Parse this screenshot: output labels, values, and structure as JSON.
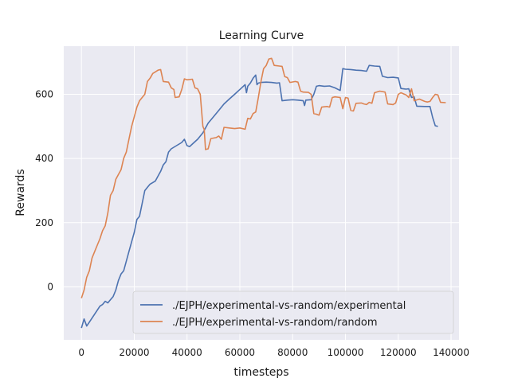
{
  "chart_data": {
    "type": "line",
    "title": "Learning Curve",
    "xlabel": "timesteps",
    "ylabel": "Rewards",
    "xlim": [
      -6700,
      143000
    ],
    "ylim": [
      -165,
      750
    ],
    "xticks": [
      0,
      20000,
      40000,
      60000,
      80000,
      100000,
      120000,
      140000
    ],
    "yticks": [
      0,
      200,
      400,
      600
    ],
    "grid": true,
    "legend_position": "lower-right",
    "series": [
      {
        "name": "./EJPH/experimental-vs-random/experimental",
        "color": "#4c72b0",
        "points": [
          [
            0,
            -128
          ],
          [
            1000,
            -100
          ],
          [
            2000,
            -122
          ],
          [
            3000,
            -110
          ],
          [
            5000,
            -85
          ],
          [
            7000,
            -60
          ],
          [
            8000,
            -55
          ],
          [
            9000,
            -45
          ],
          [
            10000,
            -50
          ],
          [
            11000,
            -40
          ],
          [
            12000,
            -30
          ],
          [
            13000,
            -10
          ],
          [
            14000,
            20
          ],
          [
            15000,
            40
          ],
          [
            16000,
            50
          ],
          [
            18000,
            110
          ],
          [
            20000,
            170
          ],
          [
            21000,
            210
          ],
          [
            22000,
            220
          ],
          [
            23000,
            260
          ],
          [
            24000,
            300
          ],
          [
            25000,
            310
          ],
          [
            26000,
            320
          ],
          [
            27000,
            325
          ],
          [
            28000,
            330
          ],
          [
            29000,
            345
          ],
          [
            30000,
            360
          ],
          [
            31000,
            380
          ],
          [
            32000,
            390
          ],
          [
            33000,
            420
          ],
          [
            34000,
            430
          ],
          [
            36000,
            440
          ],
          [
            38000,
            450
          ],
          [
            39000,
            460
          ],
          [
            40000,
            440
          ],
          [
            41000,
            437
          ],
          [
            42000,
            445
          ],
          [
            44000,
            460
          ],
          [
            46000,
            480
          ],
          [
            48000,
            510
          ],
          [
            50000,
            530
          ],
          [
            52000,
            550
          ],
          [
            54000,
            570
          ],
          [
            56000,
            585
          ],
          [
            58000,
            600
          ],
          [
            60000,
            615
          ],
          [
            62000,
            630
          ],
          [
            62500,
            605
          ],
          [
            63000,
            625
          ],
          [
            64000,
            635
          ],
          [
            65000,
            650
          ],
          [
            66000,
            660
          ],
          [
            66500,
            630
          ],
          [
            67000,
            635
          ],
          [
            68000,
            637
          ],
          [
            70000,
            638
          ],
          [
            72000,
            637
          ],
          [
            74000,
            635
          ],
          [
            75000,
            636
          ],
          [
            76000,
            580
          ],
          [
            78000,
            582
          ],
          [
            80000,
            583
          ],
          [
            82000,
            582
          ],
          [
            84000,
            580
          ],
          [
            84500,
            565
          ],
          [
            85000,
            582
          ],
          [
            87000,
            583
          ],
          [
            88000,
            600
          ],
          [
            89000,
            625
          ],
          [
            90000,
            627
          ],
          [
            92000,
            625
          ],
          [
            94000,
            626
          ],
          [
            96000,
            620
          ],
          [
            98000,
            612
          ],
          [
            99000,
            680
          ],
          [
            100000,
            678
          ],
          [
            102000,
            677
          ],
          [
            104000,
            675
          ],
          [
            106000,
            674
          ],
          [
            108000,
            672
          ],
          [
            109000,
            690
          ],
          [
            111000,
            688
          ],
          [
            113000,
            687
          ],
          [
            114000,
            656
          ],
          [
            116000,
            652
          ],
          [
            118000,
            653
          ],
          [
            120000,
            651
          ],
          [
            121000,
            618
          ],
          [
            123000,
            616
          ],
          [
            124000,
            617
          ],
          [
            125000,
            590
          ],
          [
            126000,
            592
          ],
          [
            127000,
            563
          ],
          [
            130000,
            562
          ],
          [
            132000,
            562
          ],
          [
            133000,
            528
          ],
          [
            134000,
            502
          ],
          [
            135000,
            500
          ]
        ]
      },
      {
        "name": "./EJPH/experimental-vs-random/random",
        "color": "#dd8452",
        "points": [
          [
            0,
            -35
          ],
          [
            1000,
            -10
          ],
          [
            2000,
            30
          ],
          [
            3000,
            50
          ],
          [
            4000,
            90
          ],
          [
            5000,
            110
          ],
          [
            6000,
            130
          ],
          [
            7000,
            150
          ],
          [
            8000,
            175
          ],
          [
            9000,
            190
          ],
          [
            10000,
            230
          ],
          [
            11000,
            285
          ],
          [
            12000,
            300
          ],
          [
            13000,
            335
          ],
          [
            14000,
            350
          ],
          [
            15000,
            365
          ],
          [
            16000,
            400
          ],
          [
            17000,
            420
          ],
          [
            18000,
            460
          ],
          [
            19000,
            500
          ],
          [
            20000,
            530
          ],
          [
            21000,
            560
          ],
          [
            22000,
            580
          ],
          [
            23000,
            590
          ],
          [
            24000,
            600
          ],
          [
            25000,
            640
          ],
          [
            26000,
            650
          ],
          [
            27000,
            665
          ],
          [
            28000,
            670
          ],
          [
            29000,
            675
          ],
          [
            30000,
            677
          ],
          [
            31000,
            640
          ],
          [
            33000,
            638
          ],
          [
            34000,
            620
          ],
          [
            35000,
            615
          ],
          [
            35500,
            590
          ],
          [
            37000,
            592
          ],
          [
            38000,
            615
          ],
          [
            39000,
            648
          ],
          [
            40000,
            645
          ],
          [
            42000,
            647
          ],
          [
            43000,
            620
          ],
          [
            44000,
            617
          ],
          [
            45000,
            600
          ],
          [
            46000,
            500
          ],
          [
            46500,
            490
          ],
          [
            47000,
            428
          ],
          [
            48000,
            430
          ],
          [
            49000,
            462
          ],
          [
            51000,
            465
          ],
          [
            52000,
            470
          ],
          [
            53000,
            460
          ],
          [
            54000,
            497
          ],
          [
            56000,
            495
          ],
          [
            58000,
            493
          ],
          [
            60000,
            495
          ],
          [
            62000,
            491
          ],
          [
            63000,
            525
          ],
          [
            64000,
            523
          ],
          [
            65000,
            540
          ],
          [
            66000,
            545
          ],
          [
            67000,
            590
          ],
          [
            68000,
            640
          ],
          [
            69000,
            680
          ],
          [
            70000,
            690
          ],
          [
            71000,
            710
          ],
          [
            72000,
            712
          ],
          [
            73000,
            690
          ],
          [
            75000,
            688
          ],
          [
            76000,
            687
          ],
          [
            77000,
            655
          ],
          [
            78000,
            652
          ],
          [
            79000,
            637
          ],
          [
            81000,
            640
          ],
          [
            82000,
            638
          ],
          [
            83000,
            610
          ],
          [
            84000,
            607
          ],
          [
            86000,
            606
          ],
          [
            87000,
            600
          ],
          [
            88000,
            540
          ],
          [
            89000,
            538
          ],
          [
            90000,
            535
          ],
          [
            91000,
            560
          ],
          [
            93000,
            562
          ],
          [
            94000,
            560
          ],
          [
            95000,
            590
          ],
          [
            96000,
            592
          ],
          [
            98000,
            590
          ],
          [
            99000,
            555
          ],
          [
            100000,
            590
          ],
          [
            101000,
            588
          ],
          [
            102000,
            550
          ],
          [
            103000,
            548
          ],
          [
            104000,
            572
          ],
          [
            106000,
            573
          ],
          [
            107000,
            570
          ],
          [
            108000,
            568
          ],
          [
            109000,
            575
          ],
          [
            110000,
            572
          ],
          [
            111000,
            605
          ],
          [
            113000,
            610
          ],
          [
            115000,
            607
          ],
          [
            116000,
            570
          ],
          [
            118000,
            568
          ],
          [
            119000,
            573
          ],
          [
            120000,
            600
          ],
          [
            121000,
            605
          ],
          [
            123000,
            598
          ],
          [
            124000,
            590
          ],
          [
            125000,
            617
          ],
          [
            126000,
            580
          ],
          [
            128000,
            585
          ],
          [
            130000,
            578
          ],
          [
            131000,
            576
          ],
          [
            132000,
            578
          ],
          [
            133000,
            590
          ],
          [
            134000,
            600
          ],
          [
            135000,
            598
          ],
          [
            136000,
            575
          ],
          [
            138000,
            574
          ]
        ]
      }
    ]
  }
}
